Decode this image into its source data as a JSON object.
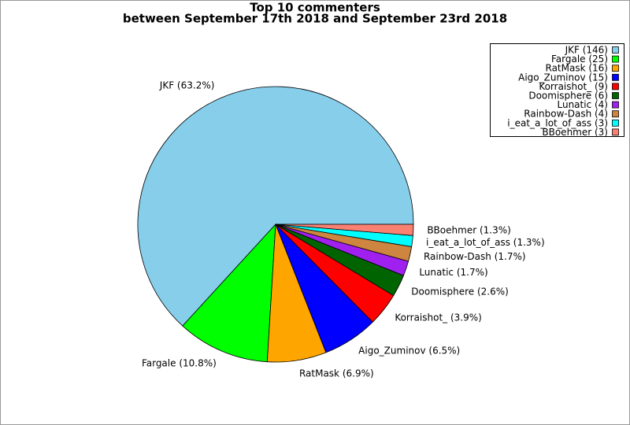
{
  "chart_data": {
    "type": "pie",
    "title": "Top 10 commenters",
    "subtitle": "between September 17th 2018 and September 23rd 2018",
    "categories": [
      "JKF",
      "Fargale",
      "RatMask",
      "Aigo_Zuminov",
      "Korraishot_",
      "Doomisphere",
      "Lunatic",
      "Rainbow-Dash",
      "i_eat_a_lot_of_ass",
      "BBoehmer"
    ],
    "values": [
      146,
      25,
      16,
      15,
      9,
      6,
      4,
      4,
      3,
      3
    ],
    "labels": [
      "JKF (63.2%)",
      "Fargale (10.8%)",
      "RatMask (6.9%)",
      "Aigo_Zuminov (6.5%)",
      "Korraishot_ (3.9%)",
      "Doomisphere (2.6%)",
      "Lunatic (1.7%)",
      "Rainbow-Dash (1.7%)",
      "i_eat_a_lot_of_ass (1.3%)",
      "BBoehmer (1.3%)"
    ],
    "legend": [
      "JKF (146)",
      "Fargale (25)",
      "RatMask (16)",
      "Aigo_Zuminov (15)",
      "Korraishot_ (9)",
      "Doomisphere (6)",
      "Lunatic (4)",
      "Rainbow-Dash (4)",
      "i_eat_a_lot_of_ass (3)",
      "BBoehmer (3)"
    ],
    "colors": [
      "#87ceeb",
      "#00ff00",
      "#ffa500",
      "#0000ff",
      "#ff0000",
      "#006400",
      "#a020f0",
      "#cd853f",
      "#00ffff",
      "#fa8072"
    ],
    "legend_position": "upper right"
  }
}
